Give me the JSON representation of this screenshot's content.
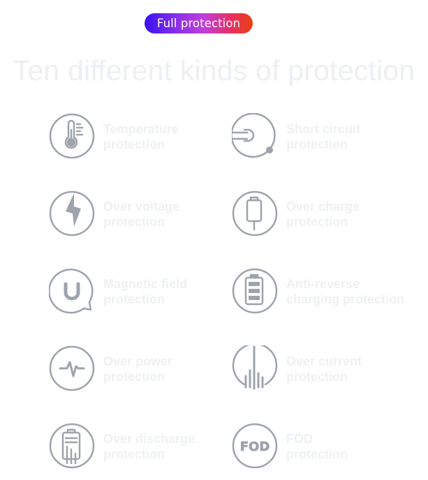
{
  "header": {
    "badge_label": "Full protection",
    "title": "Ten different kinds of protection"
  },
  "protections": [
    {
      "line1": "Temperature",
      "line2": "protection",
      "icon": "thermometer-icon"
    },
    {
      "line1": "Short circuit",
      "line2": "protection",
      "icon": "short-circuit-icon"
    },
    {
      "line1": "Over voltage",
      "line2": "protection",
      "icon": "lightning-bolt-icon"
    },
    {
      "line1": "Over charge",
      "line2": "protection",
      "icon": "charging-plug-icon"
    },
    {
      "line1": "Magnetic field",
      "line2": "protection",
      "icon": "magnet-icon"
    },
    {
      "line1": "Anti-reverse",
      "line2": "charging protection",
      "icon": "battery-icon"
    },
    {
      "line1": "Over power",
      "line2": "protection",
      "icon": "pulse-wave-icon"
    },
    {
      "line1": "Over current",
      "line2": "protection",
      "icon": "current-bars-icon"
    },
    {
      "line1": "Over discharge",
      "line2": "protection",
      "icon": "discharge-battery-icon"
    },
    {
      "line1": "FOD",
      "line2": "protection",
      "icon": "fod-icon"
    }
  ],
  "colors": {
    "icon_stroke": "#9ea3ab",
    "label_text": "#eef0f2",
    "title_text": "#eeeff1",
    "badge_gradient_start": "#3a10f0",
    "badge_gradient_end": "#e84010"
  }
}
